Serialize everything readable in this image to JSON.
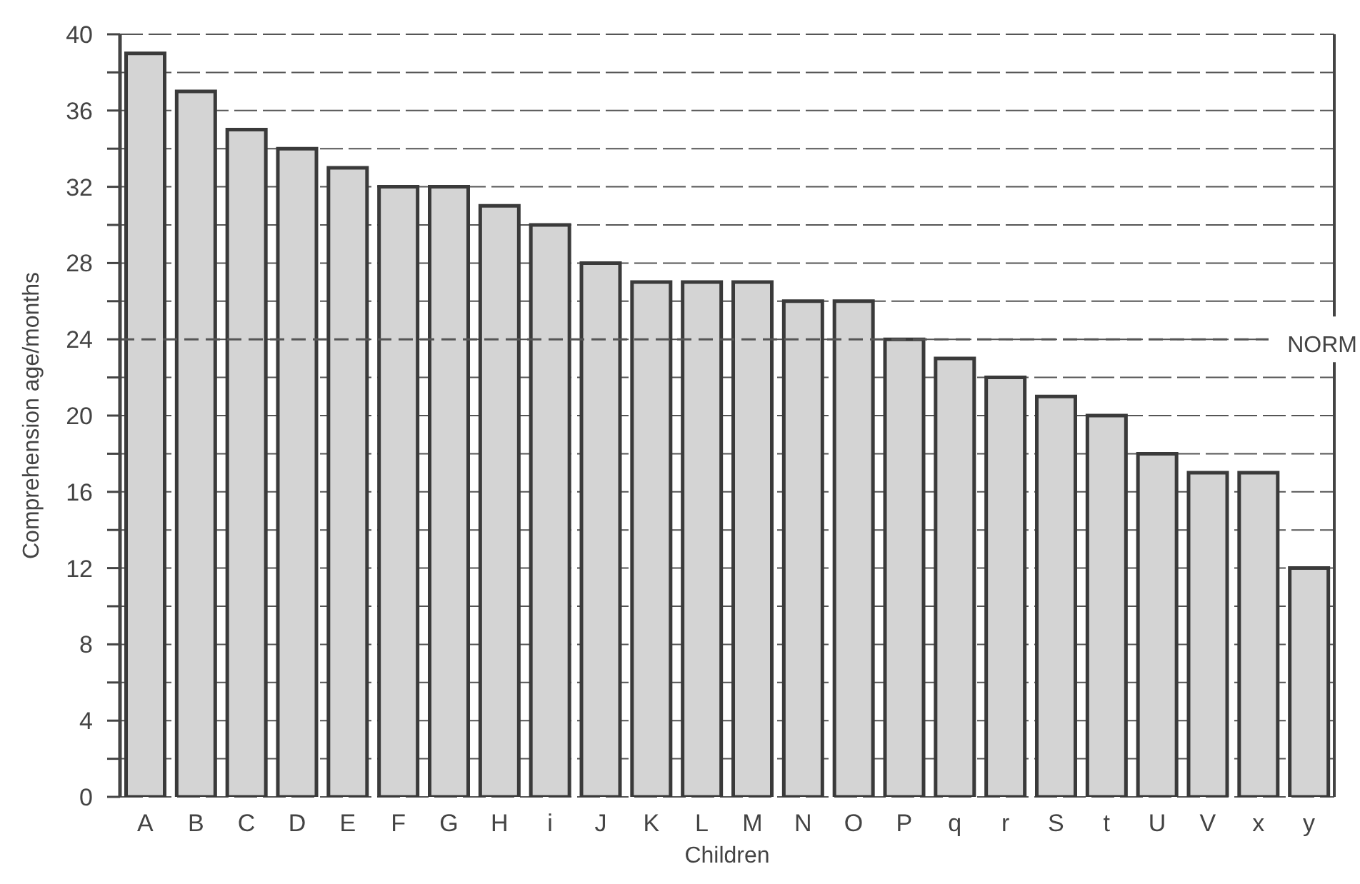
{
  "chart_data": {
    "type": "bar",
    "xlabel": "Children",
    "ylabel": "Comprehension age/months",
    "categories": [
      "A",
      "B",
      "C",
      "D",
      "E",
      "F",
      "G",
      "H",
      "i",
      "J",
      "K",
      "L",
      "M",
      "N",
      "O",
      "P",
      "q",
      "r",
      "S",
      "t",
      "U",
      "V",
      "x",
      "y"
    ],
    "values": [
      39,
      37,
      35,
      34,
      33,
      32,
      32,
      31,
      30,
      28,
      27,
      27,
      27,
      26,
      26,
      24,
      23,
      22,
      21,
      20,
      18,
      17,
      17,
      12
    ],
    "color": "#d4d4d4",
    "ylim": [
      0,
      40
    ],
    "yticks": [
      0,
      {
        "value": 2,
        "label": null
      },
      4,
      {
        "value": 6,
        "label": null
      },
      8,
      {
        "value": 10,
        "label": null
      },
      12,
      {
        "value": 14,
        "label": null
      },
      16,
      {
        "value": 18,
        "label": null
      },
      20,
      {
        "value": 22,
        "label": null
      },
      24,
      {
        "value": 26,
        "label": null
      },
      28,
      {
        "value": 30,
        "label": null
      },
      32,
      {
        "value": 34,
        "label": null
      },
      36,
      {
        "value": 38,
        "label": null
      },
      40
    ],
    "grid": "y",
    "ref_lines": [
      {
        "axis": "y",
        "value": 24,
        "label": "NORM",
        "line_style": "dashed"
      }
    ]
  }
}
